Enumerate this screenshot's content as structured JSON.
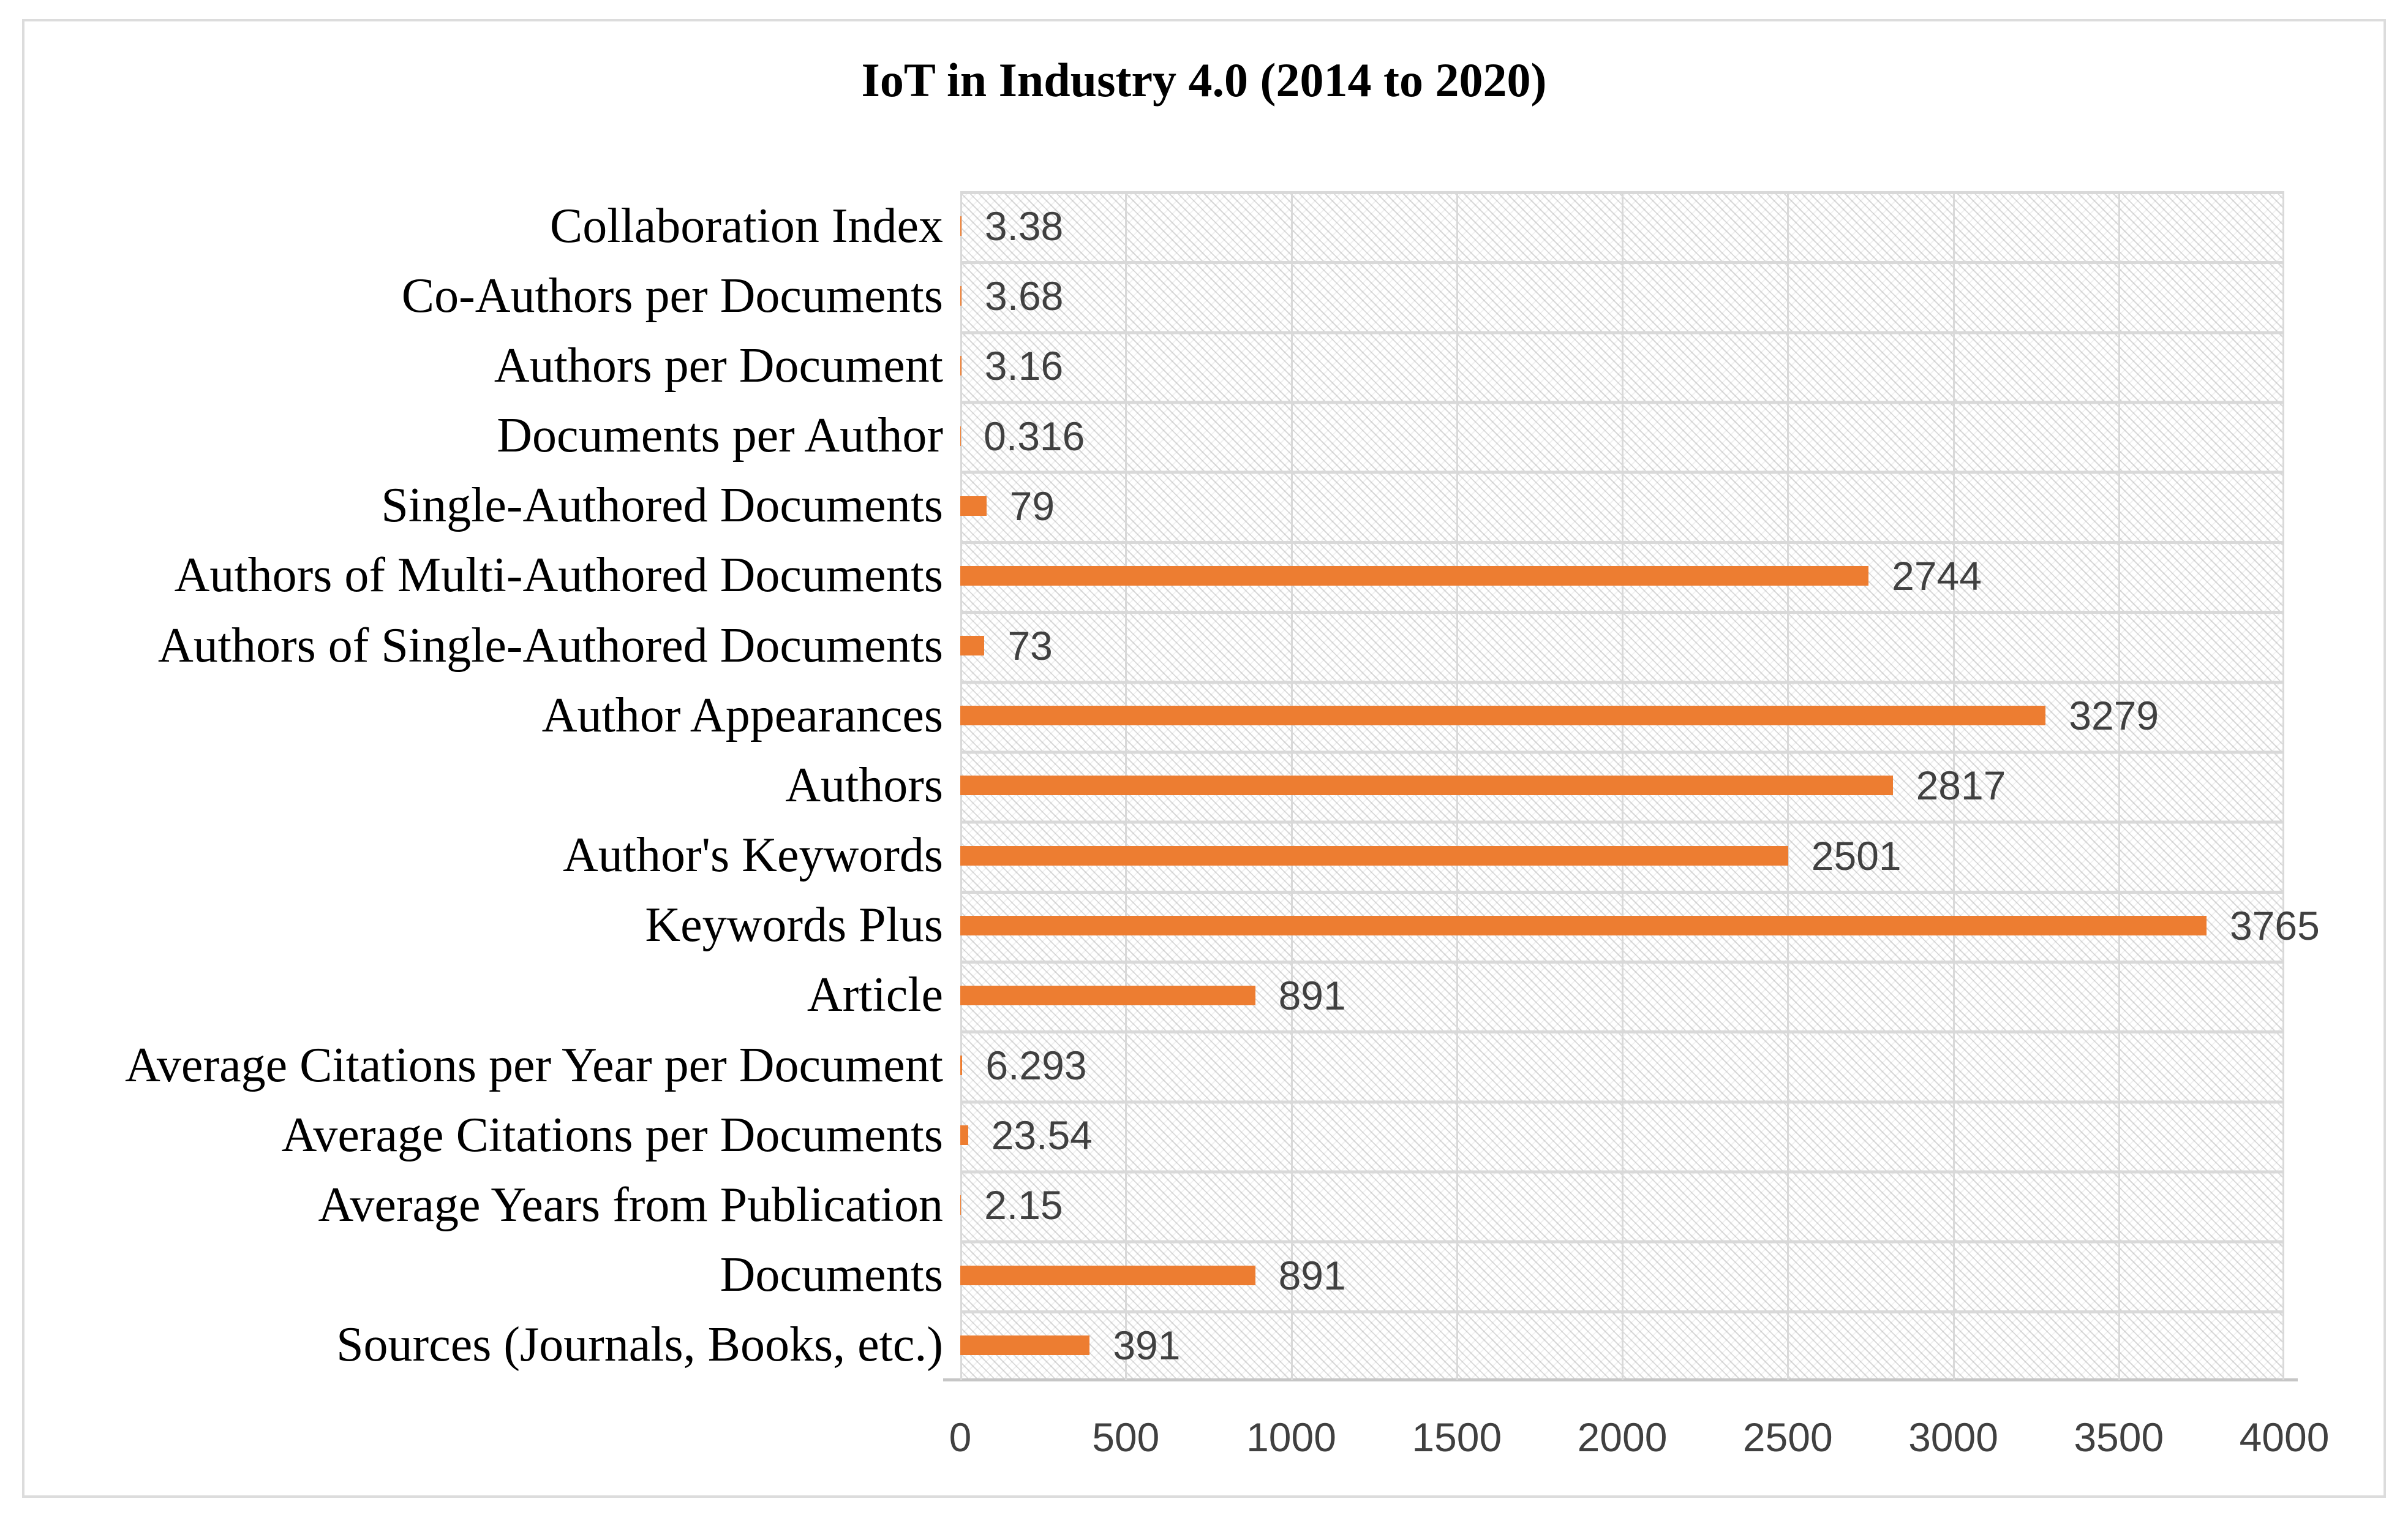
{
  "chart_data": {
    "type": "bar",
    "orientation": "horizontal",
    "title": "IoT in Industry 4.0 (2014 to 2020)",
    "categories": [
      "Collaboration Index",
      "Co-Authors per Documents",
      "Authors per Document",
      "Documents per Author",
      "Single-Authored Documents",
      "Authors of Multi-Authored Documents",
      "Authors of Single-Authored Documents",
      "Author Appearances",
      "Authors",
      "Author's Keywords",
      "Keywords Plus",
      "Article",
      "Average Citations per Year per Document",
      "Average Citations per Documents",
      "Average Years from Publication",
      "Documents",
      "Sources (Journals, Books, etc.)"
    ],
    "values": [
      3.38,
      3.68,
      3.16,
      0.316,
      79,
      2744,
      73,
      3279,
      2817,
      2501,
      3765,
      891,
      6.293,
      23.54,
      2.15,
      891,
      391
    ],
    "value_labels": [
      "3.38",
      "3.68",
      "3.16",
      "0.316",
      "79",
      "2744",
      "73",
      "3279",
      "2817",
      "2501",
      "3765",
      "891",
      "6.293",
      "23.54",
      "2.15",
      "891",
      "391"
    ],
    "x_ticks": [
      "0",
      "500",
      "1000",
      "1500",
      "2000",
      "2500",
      "3000",
      "3500",
      "4000"
    ],
    "xlim": [
      0,
      4000
    ],
    "xlabel": "",
    "ylabel": "",
    "grid": true,
    "legend": "none",
    "plot_background": "diagonal-hatch",
    "bar_color": "#ED7D31",
    "colors": {
      "gridline": "#D9D9D9",
      "axis_line": "#C6C6C6",
      "number_text": "#404040",
      "category_text": "#000000",
      "frame_border": "#DCDCDC"
    }
  }
}
